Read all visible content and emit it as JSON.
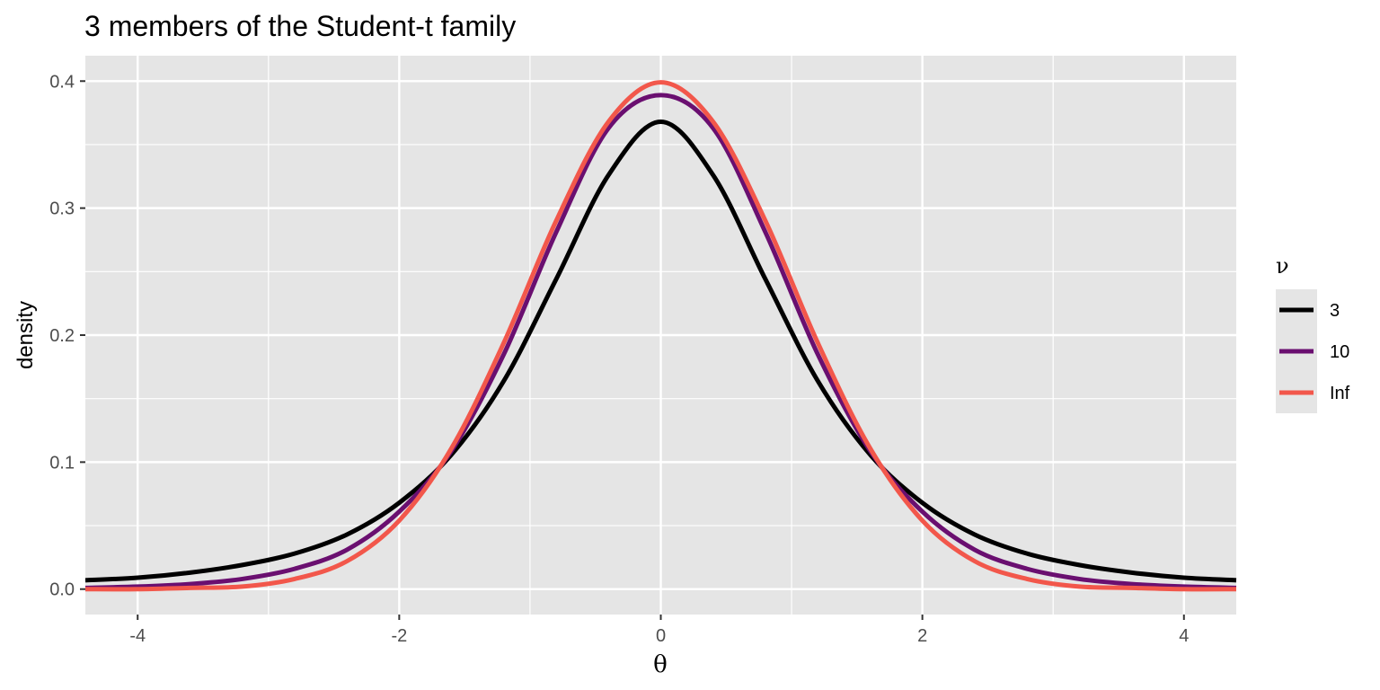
{
  "chart_data": {
    "type": "line",
    "title": "3 members of the Student-t family",
    "xlabel": "θ",
    "ylabel": "density",
    "xlim": [
      -4.4,
      4.4
    ],
    "ylim": [
      -0.02,
      0.42
    ],
    "x_ticks": [
      -4,
      -2,
      0,
      2,
      4
    ],
    "x_tick_labels": [
      "-4",
      "-2",
      "0",
      "2",
      "4"
    ],
    "y_ticks": [
      0.0,
      0.1,
      0.2,
      0.3,
      0.4
    ],
    "y_tick_labels": [
      "0.0",
      "0.1",
      "0.2",
      "0.3",
      "0.4"
    ],
    "grid": true,
    "legend": {
      "title": "ν",
      "placement": "right"
    },
    "x": [
      -4.4,
      -4.0,
      -3.6,
      -3.2,
      -2.8,
      -2.4,
      -2.0,
      -1.6,
      -1.2,
      -0.8,
      -0.4,
      0.0,
      0.4,
      0.8,
      1.2,
      1.6,
      2.0,
      2.4,
      2.8,
      3.2,
      3.6,
      4.0,
      4.4
    ],
    "series": [
      {
        "name": "3",
        "color": "#000000",
        "values": [
          0.007,
          0.009,
          0.013,
          0.019,
          0.028,
          0.043,
          0.068,
          0.106,
          0.164,
          0.244,
          0.326,
          0.368,
          0.326,
          0.244,
          0.164,
          0.106,
          0.068,
          0.043,
          0.028,
          0.019,
          0.013,
          0.009,
          0.007
        ]
      },
      {
        "name": "10",
        "color": "#6a0f70",
        "values": [
          0.001,
          0.002,
          0.004,
          0.008,
          0.016,
          0.031,
          0.061,
          0.109,
          0.185,
          0.281,
          0.363,
          0.389,
          0.363,
          0.281,
          0.185,
          0.109,
          0.061,
          0.031,
          0.016,
          0.008,
          0.004,
          0.002,
          0.001
        ]
      },
      {
        "name": "Inf",
        "color": "#f2574b",
        "values": [
          0.0,
          0.0,
          0.001,
          0.002,
          0.008,
          0.022,
          0.054,
          0.111,
          0.194,
          0.29,
          0.368,
          0.399,
          0.368,
          0.29,
          0.194,
          0.111,
          0.054,
          0.022,
          0.008,
          0.002,
          0.001,
          0.0,
          0.0
        ]
      }
    ]
  }
}
